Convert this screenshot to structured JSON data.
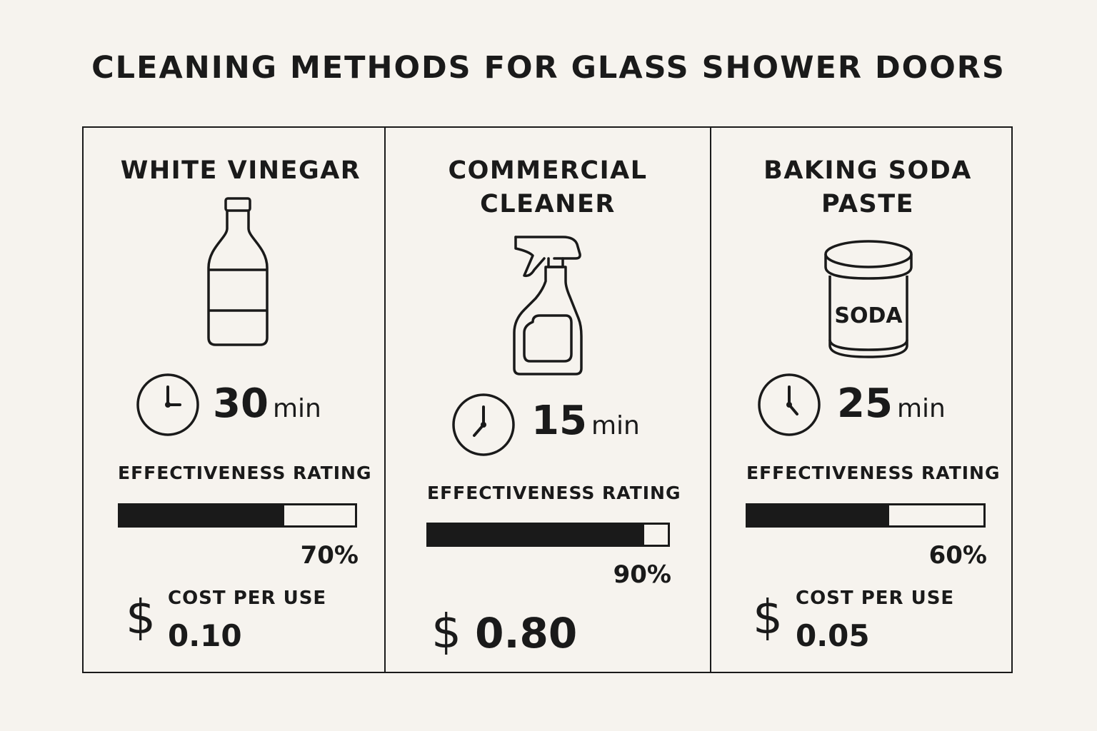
{
  "title": "CLEANING METHODS FOR GLASS SHOWER DOORS",
  "methods": [
    {
      "name": "WHITE VINEGAR",
      "icon": "vinegar-bottle-icon",
      "time_value": "30",
      "time_unit": "min",
      "effectiveness_label": "EFFECTIVENESS RATING",
      "effectiveness_pct": 70,
      "effectiveness_text": "70%",
      "cost_label": "COST PER USE",
      "currency_symbol": "$",
      "cost_value": "0.10"
    },
    {
      "name_line1": "COMMERCIAL",
      "name_line2": "CLEANER",
      "icon": "spray-bottle-icon",
      "time_value": "15",
      "time_unit": "min",
      "effectiveness_label": "EFFECTIVENESS RATING",
      "effectiveness_pct": 90,
      "effectiveness_text": "90%",
      "currency_symbol": "$",
      "cost_value": "0.80"
    },
    {
      "name_line1": "BAKING SODA",
      "name_line2": "PASTE",
      "icon": "soda-jar-icon",
      "jar_label": "SODA",
      "time_value": "25",
      "time_unit": "min",
      "effectiveness_label": "EFFECTIVENESS RATING",
      "effectiveness_pct": 60,
      "effectiveness_text": "60%",
      "cost_label": "COST PER USE",
      "currency_symbol": "$",
      "cost_value": "0.05"
    }
  ]
}
